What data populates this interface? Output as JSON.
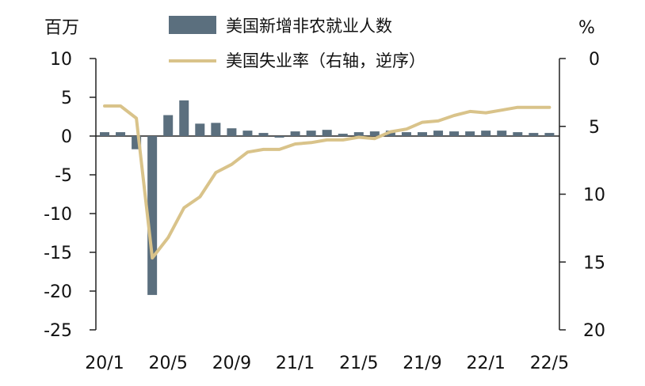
{
  "chart_data": {
    "type": "bar+line",
    "left_axis_unit": "百万",
    "right_axis_unit": "%",
    "left_ylim": [
      -25,
      10
    ],
    "left_yticks": [
      10,
      5,
      0,
      -5,
      -10,
      -15,
      -20,
      -25
    ],
    "right_ylim_reversed": [
      0,
      20
    ],
    "right_yticks": [
      0,
      5,
      10,
      15,
      20
    ],
    "x_tick_labels": [
      "20/1",
      "20/5",
      "20/9",
      "21/1",
      "21/5",
      "21/9",
      "22/1",
      "22/5"
    ],
    "months": [
      "20/1",
      "20/2",
      "20/3",
      "20/4",
      "20/5",
      "20/6",
      "20/7",
      "20/8",
      "20/9",
      "20/10",
      "20/11",
      "20/12",
      "21/1",
      "21/2",
      "21/3",
      "21/4",
      "21/5",
      "21/6",
      "21/7",
      "21/8",
      "21/9",
      "21/10",
      "21/11",
      "21/12",
      "22/1",
      "22/2",
      "22/3",
      "22/4",
      "22/5"
    ],
    "series": [
      {
        "name": "美国新增非农就业人数",
        "kind": "bar",
        "axis": "left",
        "color": "#5b6f7e",
        "values": [
          0.5,
          0.5,
          -1.7,
          -20.5,
          2.7,
          4.6,
          1.6,
          1.7,
          1.0,
          0.7,
          0.4,
          -0.2,
          0.6,
          0.7,
          0.8,
          0.3,
          0.5,
          0.6,
          0.7,
          0.5,
          0.5,
          0.7,
          0.6,
          0.6,
          0.7,
          0.7,
          0.5,
          0.4,
          0.4
        ]
      },
      {
        "name": "美国失业率（右轴，逆序）",
        "kind": "line",
        "axis": "right",
        "color": "#d9c38a",
        "values": [
          3.5,
          3.5,
          4.4,
          14.7,
          13.2,
          11.0,
          10.2,
          8.4,
          7.8,
          6.9,
          6.7,
          6.7,
          6.3,
          6.2,
          6.0,
          6.0,
          5.8,
          5.9,
          5.4,
          5.2,
          4.7,
          4.6,
          4.2,
          3.9,
          4.0,
          3.8,
          3.6,
          3.6,
          3.6
        ]
      }
    ]
  }
}
